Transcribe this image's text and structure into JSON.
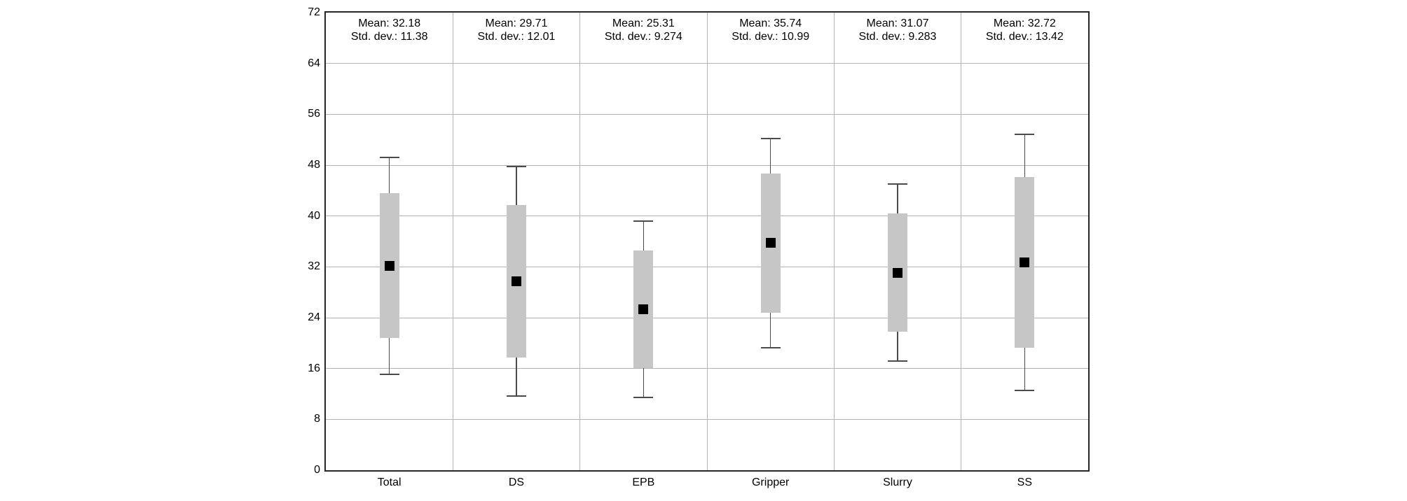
{
  "chart_data": {
    "type": "box",
    "title": "",
    "xlabel": "",
    "ylabel": "",
    "ylim": [
      0,
      72
    ],
    "yticks": [
      0,
      8,
      16,
      24,
      32,
      40,
      48,
      56,
      64,
      72
    ],
    "grid": true,
    "panel_dividers": true,
    "legend": "none",
    "categories": [
      "Total",
      "DS",
      "EPB",
      "Gripper",
      "Slurry",
      "SS"
    ],
    "points": [
      {
        "category": "Total",
        "mean": 32.18,
        "std_dev": 11.38,
        "box_low": 20.8,
        "box_high": 43.56,
        "whisker_low": 15.11,
        "whisker_high": 49.25,
        "mean_label": "Mean: 32.18",
        "std_label": "Std. dev.: 11.38"
      },
      {
        "category": "DS",
        "mean": 29.71,
        "std_dev": 12.01,
        "box_low": 17.7,
        "box_high": 41.72,
        "whisker_low": 11.7,
        "whisker_high": 47.73,
        "mean_label": "Mean: 29.71",
        "std_label": "Std. dev.: 12.01"
      },
      {
        "category": "EPB",
        "mean": 25.31,
        "std_dev": 9.274,
        "box_low": 16.04,
        "box_high": 34.58,
        "whisker_low": 11.4,
        "whisker_high": 39.22,
        "mean_label": "Mean: 25.31",
        "std_label": "Std. dev.: 9.274"
      },
      {
        "category": "Gripper",
        "mean": 35.74,
        "std_dev": 10.99,
        "box_low": 24.75,
        "box_high": 46.73,
        "whisker_low": 19.26,
        "whisker_high": 52.23,
        "mean_label": "Mean: 35.74",
        "std_label": "Std. dev.: 10.99"
      },
      {
        "category": "Slurry",
        "mean": 31.07,
        "std_dev": 9.283,
        "box_low": 21.79,
        "box_high": 40.35,
        "whisker_low": 17.15,
        "whisker_high": 44.99,
        "mean_label": "Mean: 31.07",
        "std_label": "Std. dev.: 9.283"
      },
      {
        "category": "SS",
        "mean": 32.72,
        "std_dev": 13.42,
        "box_low": 19.3,
        "box_high": 46.14,
        "whisker_low": 12.59,
        "whisker_high": 52.85,
        "mean_label": "Mean: 32.72",
        "std_label": "Std. dev.: 13.42"
      }
    ],
    "colors": {
      "box_fill": "#c6c6c6",
      "mean_marker": "#000000",
      "whisker": "#4a4a4a",
      "gridline": "#b3b3b3",
      "plot_border": "#262626",
      "text": "#000000",
      "background": "#ffffff"
    }
  }
}
